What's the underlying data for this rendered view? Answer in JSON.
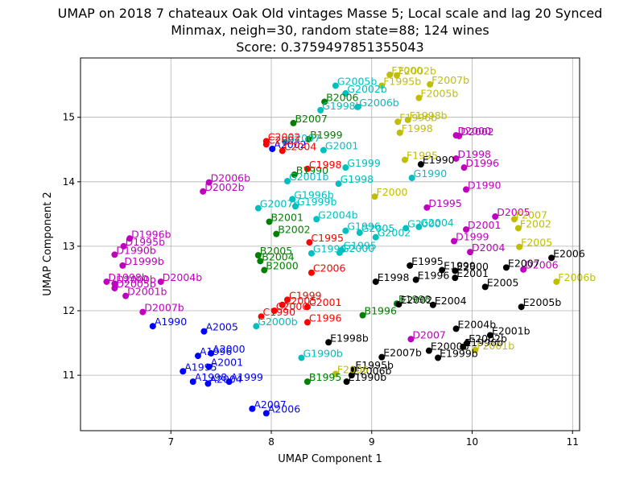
{
  "chart_data": {
    "type": "scatter",
    "title_lines": [
      "UMAP on 2018 7 chateaux Oak Old vintages Masse 5; Local scale and lag 20 Synced",
      "Minmax, neigh=30, random state=88; 124 wines",
      "Score: 0.3759497851355043"
    ],
    "xlabel": "UMAP Component 1",
    "ylabel": "UMAP Component 2",
    "xlim": [
      6.1,
      11.07
    ],
    "ylim": [
      10.14,
      15.92
    ],
    "xticks": [
      7,
      8,
      9,
      10,
      11
    ],
    "yticks": [
      11,
      12,
      13,
      14,
      15
    ],
    "grid": true,
    "series": [
      {
        "group": "A",
        "color": "#0000ff",
        "points": [
          {
            "x": 8.01,
            "y": 14.51,
            "label": "A2002"
          },
          {
            "x": 6.82,
            "y": 11.76,
            "label": "A1990"
          },
          {
            "x": 7.33,
            "y": 11.68,
            "label": "A2005"
          },
          {
            "x": 7.4,
            "y": 11.34,
            "label": "A2000"
          },
          {
            "x": 7.27,
            "y": 11.3,
            "label": "A1996"
          },
          {
            "x": 7.38,
            "y": 11.13,
            "label": "A2001"
          },
          {
            "x": 7.12,
            "y": 11.06,
            "label": "A1995"
          },
          {
            "x": 7.22,
            "y": 10.9,
            "label": "A1998"
          },
          {
            "x": 7.37,
            "y": 10.87,
            "label": "A2004"
          },
          {
            "x": 7.58,
            "y": 10.9,
            "label": "A1999"
          },
          {
            "x": 7.81,
            "y": 10.48,
            "label": "A2007"
          },
          {
            "x": 7.95,
            "y": 10.41,
            "label": "A2006"
          }
        ]
      },
      {
        "group": "B",
        "color": "#008000",
        "points": [
          {
            "x": 8.53,
            "y": 15.24,
            "label": "B2006"
          },
          {
            "x": 8.22,
            "y": 14.91,
            "label": "B2007"
          },
          {
            "x": 8.37,
            "y": 14.66,
            "label": "B1999"
          },
          {
            "x": 8.23,
            "y": 14.11,
            "label": "B1990"
          },
          {
            "x": 7.98,
            "y": 13.38,
            "label": "B2001"
          },
          {
            "x": 8.05,
            "y": 13.19,
            "label": "B2002"
          },
          {
            "x": 7.87,
            "y": 12.86,
            "label": "B2005"
          },
          {
            "x": 7.89,
            "y": 12.77,
            "label": "B2004"
          },
          {
            "x": 7.93,
            "y": 12.63,
            "label": "B2000"
          },
          {
            "x": 8.91,
            "y": 11.93,
            "label": "B1996"
          },
          {
            "x": 9.25,
            "y": 12.11,
            "label": "B1998"
          },
          {
            "x": 8.36,
            "y": 10.9,
            "label": "B1995"
          }
        ]
      },
      {
        "group": "C",
        "color": "#ff0000",
        "points": [
          {
            "x": 7.95,
            "y": 14.63,
            "label": "C2002"
          },
          {
            "x": 7.95,
            "y": 14.58,
            "label": "C2007"
          },
          {
            "x": 8.11,
            "y": 14.48,
            "label": "C2004"
          },
          {
            "x": 8.36,
            "y": 14.2,
            "label": "C1998"
          },
          {
            "x": 8.38,
            "y": 13.06,
            "label": "C1995"
          },
          {
            "x": 8.4,
            "y": 12.59,
            "label": "C2006"
          },
          {
            "x": 8.16,
            "y": 12.17,
            "label": "C1999"
          },
          {
            "x": 8.11,
            "y": 12.09,
            "label": "C2005"
          },
          {
            "x": 8.36,
            "y": 12.06,
            "label": "C2001"
          },
          {
            "x": 8.03,
            "y": 12.0,
            "label": "C2000"
          },
          {
            "x": 7.9,
            "y": 11.91,
            "label": "C1990"
          },
          {
            "x": 8.36,
            "y": 11.82,
            "label": "C1996"
          }
        ]
      },
      {
        "group": "D",
        "color": "#bf00bf",
        "points": [
          {
            "x": 9.84,
            "y": 14.72,
            "label": "D2000"
          },
          {
            "x": 9.87,
            "y": 14.71,
            "label": "D2002"
          },
          {
            "x": 9.84,
            "y": 14.36,
            "label": "D1998"
          },
          {
            "x": 9.92,
            "y": 14.22,
            "label": "D1996"
          },
          {
            "x": 7.38,
            "y": 13.99,
            "label": "D2006b"
          },
          {
            "x": 7.32,
            "y": 13.85,
            "label": "D2002b"
          },
          {
            "x": 9.94,
            "y": 13.88,
            "label": "D1990"
          },
          {
            "x": 9.55,
            "y": 13.6,
            "label": "D1995"
          },
          {
            "x": 10.23,
            "y": 13.46,
            "label": "D2005"
          },
          {
            "x": 9.94,
            "y": 13.26,
            "label": "D2001"
          },
          {
            "x": 6.59,
            "y": 13.12,
            "label": "D1996b"
          },
          {
            "x": 6.53,
            "y": 13.0,
            "label": "D1995b"
          },
          {
            "x": 9.82,
            "y": 13.08,
            "label": "D1999"
          },
          {
            "x": 6.44,
            "y": 12.87,
            "label": "D1990b"
          },
          {
            "x": 9.98,
            "y": 12.91,
            "label": "D2004"
          },
          {
            "x": 6.52,
            "y": 12.7,
            "label": "D1999b"
          },
          {
            "x": 10.51,
            "y": 12.64,
            "label": "D2006"
          },
          {
            "x": 6.36,
            "y": 12.45,
            "label": "D1998b"
          },
          {
            "x": 6.44,
            "y": 12.42,
            "label": "D2000b"
          },
          {
            "x": 6.44,
            "y": 12.35,
            "label": "D2005b"
          },
          {
            "x": 6.9,
            "y": 12.45,
            "label": "D2004b"
          },
          {
            "x": 6.55,
            "y": 12.23,
            "label": "D2001b"
          },
          {
            "x": 6.72,
            "y": 11.98,
            "label": "D2007b"
          },
          {
            "x": 9.39,
            "y": 11.56,
            "label": "D2007"
          }
        ]
      },
      {
        "group": "E",
        "color": "#000000",
        "points": [
          {
            "x": 9.49,
            "y": 14.27,
            "label": "E1990"
          },
          {
            "x": 9.38,
            "y": 12.7,
            "label": "E1995"
          },
          {
            "x": 9.7,
            "y": 12.63,
            "label": "E1999"
          },
          {
            "x": 9.83,
            "y": 12.62,
            "label": "E2000"
          },
          {
            "x": 10.34,
            "y": 12.67,
            "label": "E2007"
          },
          {
            "x": 10.79,
            "y": 12.82,
            "label": "E2006"
          },
          {
            "x": 9.44,
            "y": 12.48,
            "label": "E1996"
          },
          {
            "x": 9.83,
            "y": 12.51,
            "label": "E2001"
          },
          {
            "x": 9.04,
            "y": 12.45,
            "label": "E1998"
          },
          {
            "x": 10.13,
            "y": 12.37,
            "label": "E2005"
          },
          {
            "x": 9.27,
            "y": 12.1,
            "label": "E2002"
          },
          {
            "x": 9.61,
            "y": 12.09,
            "label": "E2004"
          },
          {
            "x": 10.49,
            "y": 12.06,
            "label": "E2005b"
          },
          {
            "x": 9.84,
            "y": 11.72,
            "label": "E2004b"
          },
          {
            "x": 10.18,
            "y": 11.62,
            "label": "E2001b"
          },
          {
            "x": 8.57,
            "y": 11.51,
            "label": "E1998b"
          },
          {
            "x": 9.95,
            "y": 11.5,
            "label": "E2002b"
          },
          {
            "x": 9.91,
            "y": 11.44,
            "label": "E1996b"
          },
          {
            "x": 9.57,
            "y": 11.38,
            "label": "E2000b"
          },
          {
            "x": 9.1,
            "y": 11.28,
            "label": "E2007b"
          },
          {
            "x": 9.66,
            "y": 11.27,
            "label": "E1999b"
          },
          {
            "x": 8.82,
            "y": 11.09,
            "label": "E1995b"
          },
          {
            "x": 8.8,
            "y": 11.0,
            "label": "E2006b"
          },
          {
            "x": 8.75,
            "y": 10.9,
            "label": "E1990b"
          }
        ]
      },
      {
        "group": "F",
        "color": "#bfbf00",
        "points": [
          {
            "x": 9.18,
            "y": 15.66,
            "label": "F2000"
          },
          {
            "x": 9.25,
            "y": 15.65,
            "label": "F2002b"
          },
          {
            "x": 9.1,
            "y": 15.49,
            "label": "F1995b"
          },
          {
            "x": 9.58,
            "y": 15.51,
            "label": "F2007b"
          },
          {
            "x": 9.47,
            "y": 15.3,
            "label": "F2005b"
          },
          {
            "x": 9.36,
            "y": 14.96,
            "label": "F1998b"
          },
          {
            "x": 9.26,
            "y": 14.93,
            "label": "F1996b"
          },
          {
            "x": 9.28,
            "y": 14.76,
            "label": "F1998"
          },
          {
            "x": 9.33,
            "y": 14.34,
            "label": "F1995"
          },
          {
            "x": 9.03,
            "y": 13.77,
            "label": "F2000"
          },
          {
            "x": 10.42,
            "y": 13.42,
            "label": "F2007"
          },
          {
            "x": 10.46,
            "y": 13.28,
            "label": "F2002"
          },
          {
            "x": 10.47,
            "y": 12.99,
            "label": "F2005"
          },
          {
            "x": 10.84,
            "y": 12.45,
            "label": "F2006b"
          },
          {
            "x": 10.03,
            "y": 11.39,
            "label": "F2001b"
          },
          {
            "x": 8.64,
            "y": 11.02,
            "label": "F2006"
          }
        ]
      },
      {
        "group": "G",
        "color": "#00bfbf",
        "points": [
          {
            "x": 8.64,
            "y": 15.49,
            "label": "G2005b"
          },
          {
            "x": 8.74,
            "y": 15.37,
            "label": "G2002b"
          },
          {
            "x": 8.86,
            "y": 15.16,
            "label": "G2006b"
          },
          {
            "x": 8.49,
            "y": 15.11,
            "label": "G1998b"
          },
          {
            "x": 8.14,
            "y": 14.61,
            "label": "G2007"
          },
          {
            "x": 8.52,
            "y": 14.49,
            "label": "G2001"
          },
          {
            "x": 8.74,
            "y": 14.22,
            "label": "G1999"
          },
          {
            "x": 9.4,
            "y": 14.06,
            "label": "G1990"
          },
          {
            "x": 8.16,
            "y": 14.01,
            "label": "G2001b"
          },
          {
            "x": 8.67,
            "y": 13.97,
            "label": "G1998"
          },
          {
            "x": 8.21,
            "y": 13.73,
            "label": "G1996b"
          },
          {
            "x": 8.24,
            "y": 13.62,
            "label": "G1999b"
          },
          {
            "x": 7.87,
            "y": 13.59,
            "label": "G2007b"
          },
          {
            "x": 8.45,
            "y": 13.42,
            "label": "G2004b"
          },
          {
            "x": 8.74,
            "y": 13.24,
            "label": "G1996"
          },
          {
            "x": 8.88,
            "y": 13.21,
            "label": "G2005"
          },
          {
            "x": 9.34,
            "y": 13.28,
            "label": "G2000"
          },
          {
            "x": 9.47,
            "y": 13.3,
            "label": "G2004"
          },
          {
            "x": 9.04,
            "y": 13.14,
            "label": "G2002"
          },
          {
            "x": 8.7,
            "y": 12.94,
            "label": "G1995"
          },
          {
            "x": 8.4,
            "y": 12.89,
            "label": "G1990"
          },
          {
            "x": 8.68,
            "y": 12.9,
            "label": "G2000"
          },
          {
            "x": 7.85,
            "y": 11.76,
            "label": "G2000b"
          },
          {
            "x": 8.3,
            "y": 11.27,
            "label": "G1990b"
          }
        ]
      }
    ]
  }
}
